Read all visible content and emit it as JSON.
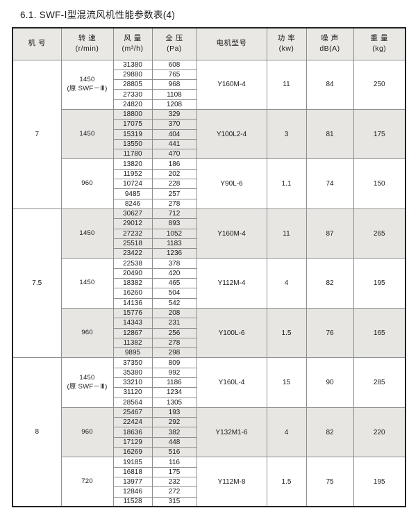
{
  "title": "6.1. SWF-Ⅰ型混流风机性能参数表(4)",
  "colors": {
    "header_bg": "#e9e8e5",
    "band_bg": "#e7e6e3",
    "border_outer": "#222222",
    "border_inner": "#8f8f8f"
  },
  "table": {
    "columns": [
      {
        "key": "machine",
        "label": "机 号"
      },
      {
        "key": "speed",
        "label": "转 速\n(r/min)"
      },
      {
        "key": "airflow",
        "label": "风 量\n(m³/h)"
      },
      {
        "key": "pressure",
        "label": "全 压\n(Pa)"
      },
      {
        "key": "motor",
        "label": "电机型号"
      },
      {
        "key": "power",
        "label": "功 率\n(kw)"
      },
      {
        "key": "noise",
        "label": "噪 声\ndB(A)"
      },
      {
        "key": "weight",
        "label": "重 量\n(kg)"
      }
    ],
    "machines": [
      {
        "id": "7",
        "groups": [
          {
            "speed": "1450\n(原 SWF－Ⅲ)",
            "points": [
              [
                31380,
                608
              ],
              [
                29880,
                765
              ],
              [
                28805,
                968
              ],
              [
                27330,
                1108
              ],
              [
                24820,
                1208
              ]
            ],
            "motor": "Y160M-4",
            "power": "11",
            "noise": "84",
            "weight": "250"
          },
          {
            "speed": "1450",
            "points": [
              [
                18800,
                329
              ],
              [
                17075,
                370
              ],
              [
                15319,
                404
              ],
              [
                13550,
                441
              ],
              [
                11780,
                470
              ]
            ],
            "motor": "Y100L2-4",
            "power": "3",
            "noise": "81",
            "weight": "175"
          },
          {
            "speed": "960",
            "points": [
              [
                13820,
                186
              ],
              [
                11952,
                202
              ],
              [
                10724,
                228
              ],
              [
                9485,
                257
              ],
              [
                8246,
                278
              ]
            ],
            "motor": "Y90L-6",
            "power": "1.1",
            "noise": "74",
            "weight": "150"
          }
        ]
      },
      {
        "id": "7.5",
        "groups": [
          {
            "speed": "1450",
            "points": [
              [
                30627,
                712
              ],
              [
                29012,
                893
              ],
              [
                27232,
                1052
              ],
              [
                25518,
                1183
              ],
              [
                23422,
                1236
              ]
            ],
            "motor": "Y160M-4",
            "power": "11",
            "noise": "87",
            "weight": "265"
          },
          {
            "speed": "1450",
            "points": [
              [
                22538,
                378
              ],
              [
                20490,
                420
              ],
              [
                18382,
                465
              ],
              [
                16260,
                504
              ],
              [
                14136,
                542
              ]
            ],
            "motor": "Y112M-4",
            "power": "4",
            "noise": "82",
            "weight": "195"
          },
          {
            "speed": "960",
            "points": [
              [
                15776,
                208
              ],
              [
                14343,
                231
              ],
              [
                12867,
                256
              ],
              [
                11382,
                278
              ],
              [
                9895,
                298
              ]
            ],
            "motor": "Y100L-6",
            "power": "1.5",
            "noise": "76",
            "weight": "165"
          }
        ]
      },
      {
        "id": "8",
        "groups": [
          {
            "speed": "1450\n(原 SWF－Ⅲ)",
            "points": [
              [
                37350,
                809
              ],
              [
                35380,
                992
              ],
              [
                33210,
                1186
              ],
              [
                31120,
                1234
              ],
              [
                28564,
                1305
              ]
            ],
            "motor": "Y160L-4",
            "power": "15",
            "noise": "90",
            "weight": "285"
          },
          {
            "speed": "960",
            "points": [
              [
                25467,
                193
              ],
              [
                22424,
                292
              ],
              [
                18636,
                382
              ],
              [
                17129,
                448
              ],
              [
                16269,
                516
              ]
            ],
            "motor": "Y132M1-6",
            "power": "4",
            "noise": "82",
            "weight": "220"
          },
          {
            "speed": "720",
            "points": [
              [
                19185,
                116
              ],
              [
                16818,
                175
              ],
              [
                13977,
                232
              ],
              [
                12846,
                272
              ],
              [
                11528,
                315
              ]
            ],
            "motor": "Y112M-8",
            "power": "1.5",
            "noise": "75",
            "weight": "195"
          }
        ]
      }
    ]
  }
}
